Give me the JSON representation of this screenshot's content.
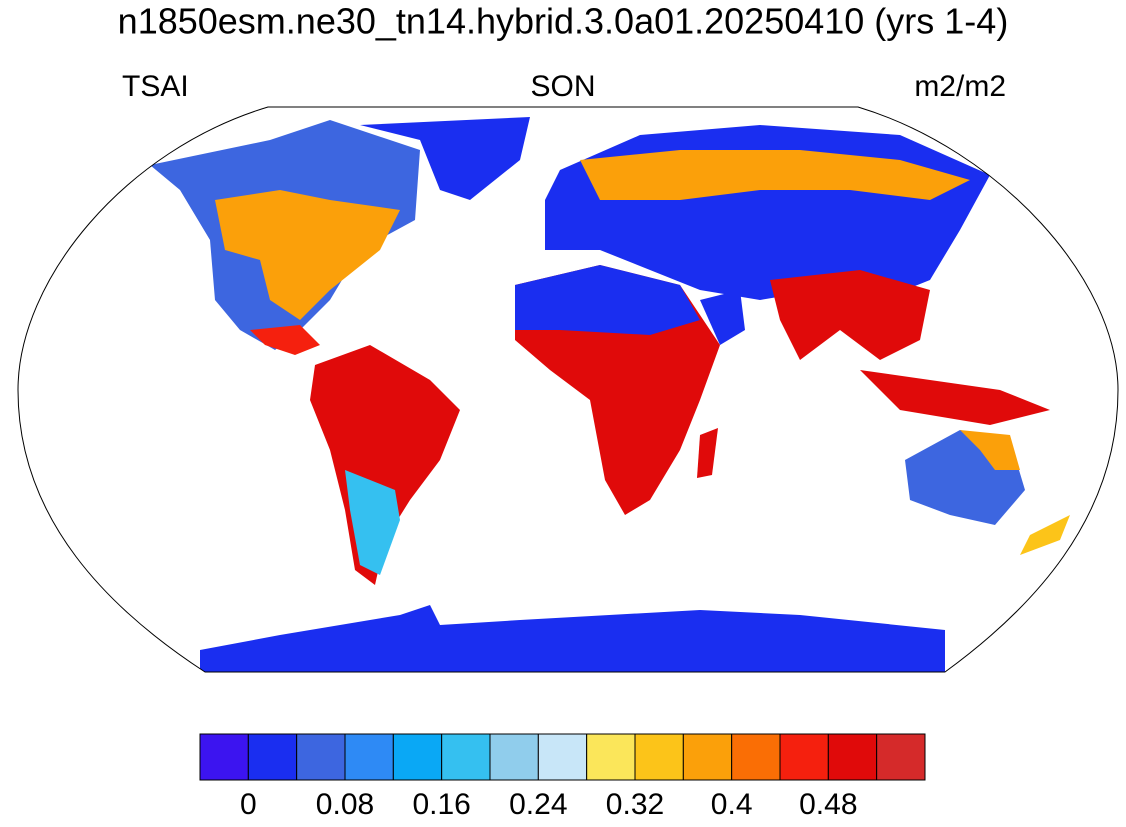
{
  "header": {
    "title": "n1850esm.ne30_tn14.hybrid.3.0a01.20250410 (yrs 1-4)",
    "left": "TSAI",
    "center": "SON",
    "right": "m2/m2"
  },
  "colorbar": {
    "colors": [
      "#3c14f0",
      "#1a2ef0",
      "#3d66e0",
      "#2e8af5",
      "#0aa8f5",
      "#35c0f0",
      "#90cdec",
      "#c8e6f8",
      "#fbe65a",
      "#fcc419",
      "#fba00a",
      "#fa6e05",
      "#f5200e",
      "#e00a0a",
      "#d52a2a"
    ],
    "labels": [
      0,
      0.08,
      0.16,
      0.24,
      0.32,
      0.4,
      0.48
    ]
  }
}
